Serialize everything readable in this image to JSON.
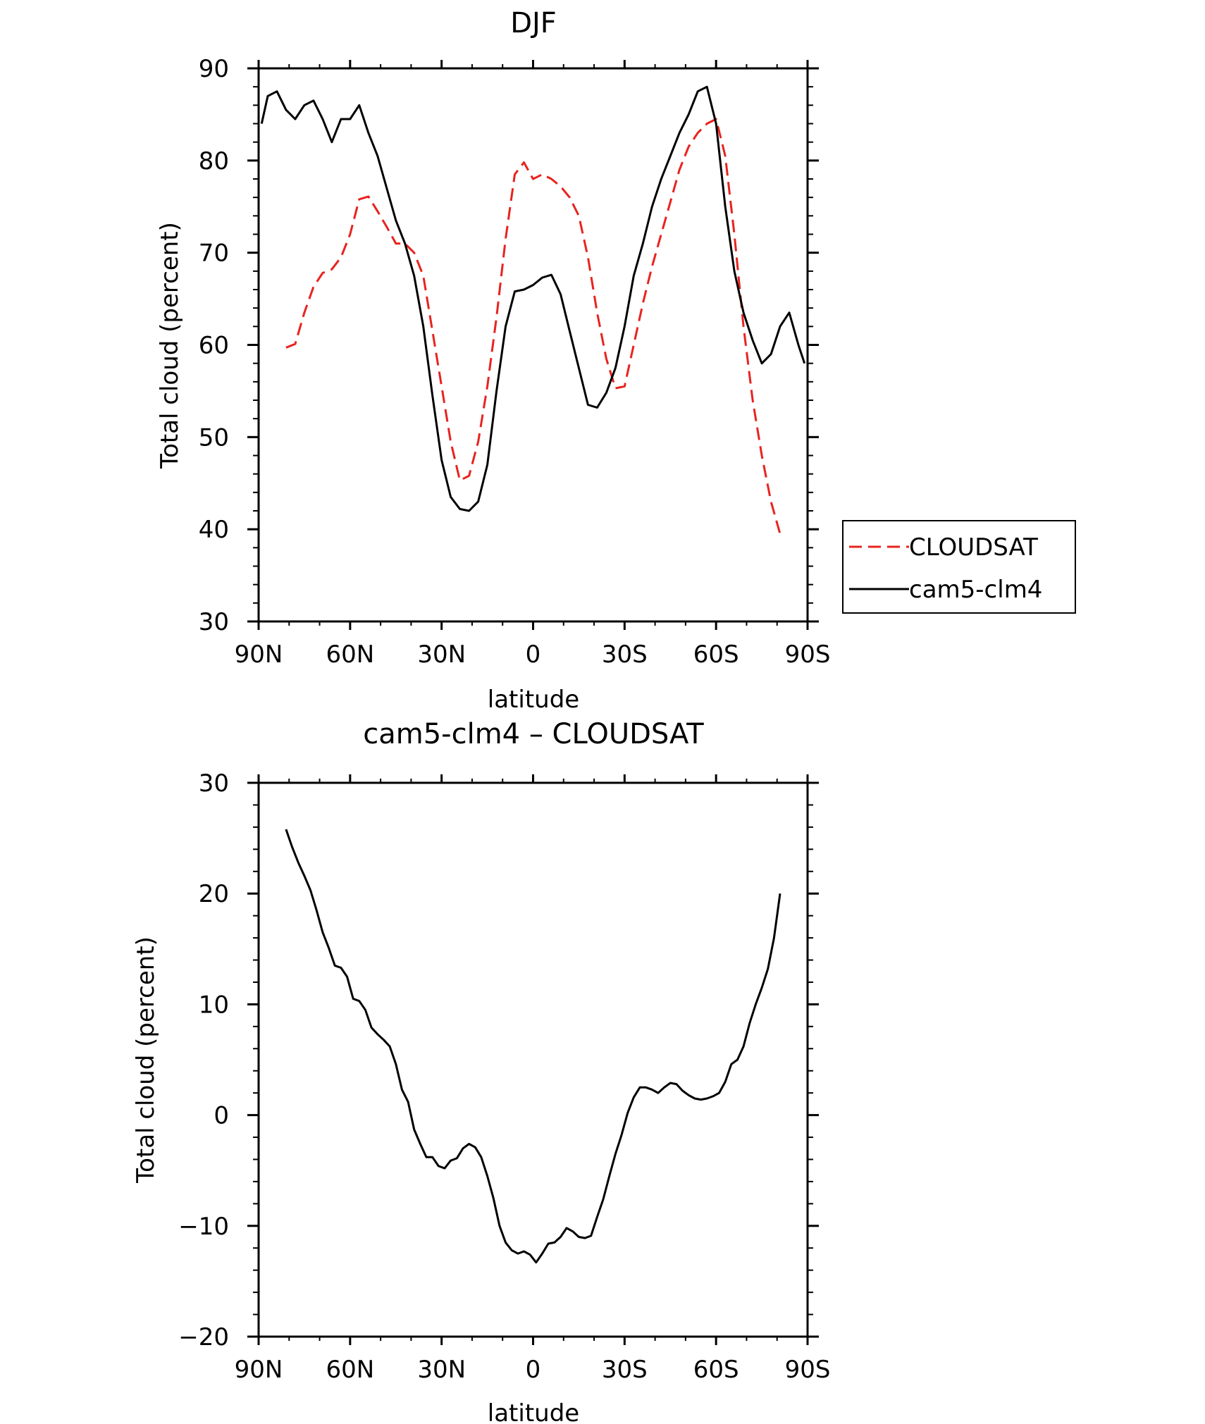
{
  "chart_data": [
    {
      "type": "line",
      "title": "DJF",
      "xlabel": "latitude",
      "ylabel": "Total cloud (percent)",
      "xlim": [
        90,
        -90
      ],
      "ylim": [
        30,
        90
      ],
      "x_ticks": [
        90,
        60,
        30,
        0,
        -30,
        -60,
        -90
      ],
      "x_tick_labels": [
        "90N",
        "60N",
        "30N",
        "0",
        "30S",
        "60S",
        "90S"
      ],
      "y_ticks": [
        30,
        40,
        50,
        60,
        70,
        80,
        90
      ],
      "y_tick_labels": [
        "30",
        "40",
        "50",
        "60",
        "70",
        "80",
        "90"
      ],
      "grid": false,
      "legend": "right",
      "series": [
        {
          "name": "CLOUDSAT",
          "color": "#e8231f",
          "dash": "dashed",
          "x": [
            81,
            78,
            75,
            72,
            69,
            66,
            63,
            60,
            57,
            54,
            51,
            48,
            45,
            42,
            39,
            36,
            33,
            30,
            27,
            24,
            21,
            18,
            15,
            12,
            9,
            6,
            3,
            0,
            -3,
            -6,
            -9,
            -12,
            -15,
            -18,
            -21,
            -24,
            -27,
            -30,
            -33,
            -36,
            -39,
            -42,
            -45,
            -48,
            -51,
            -54,
            -57,
            -60,
            -63,
            -66,
            -69,
            -72,
            -75,
            -78,
            -81
          ],
          "y": [
            59.7,
            60.1,
            63.5,
            66.3,
            67.8,
            68.2,
            69.5,
            72.0,
            75.8,
            76.1,
            74.5,
            72.8,
            71.0,
            71.0,
            70.0,
            67.5,
            61.5,
            55.5,
            49.5,
            45.3,
            45.8,
            49.5,
            55.5,
            63.0,
            71.5,
            78.5,
            79.8,
            78.0,
            78.5,
            78.0,
            77.2,
            76.0,
            74.0,
            69.5,
            63.5,
            58.5,
            55.3,
            55.5,
            60.0,
            64.5,
            68.5,
            72.0,
            75.5,
            79.0,
            81.5,
            83.0,
            84.0,
            84.5,
            80.5,
            72.0,
            62.0,
            54.0,
            48.0,
            43.0,
            39.5
          ]
        },
        {
          "name": "cam5-clm4",
          "color": "#000000",
          "dash": "solid",
          "x": [
            89,
            87,
            84,
            81,
            78,
            75,
            72,
            69,
            66,
            63,
            60,
            57,
            54,
            51,
            48,
            45,
            42,
            39,
            36,
            33,
            30,
            27,
            24,
            21,
            18,
            15,
            12,
            9,
            6,
            3,
            0,
            -3,
            -6,
            -9,
            -12,
            -15,
            -18,
            -21,
            -24,
            -27,
            -30,
            -33,
            -36,
            -39,
            -42,
            -45,
            -48,
            -51,
            -54,
            -57,
            -60,
            -63,
            -66,
            -69,
            -72,
            -75,
            -78,
            -81,
            -84,
            -87,
            -89
          ],
          "y": [
            84.0,
            87.0,
            87.5,
            85.5,
            84.5,
            86.0,
            86.5,
            84.5,
            82.0,
            84.5,
            84.5,
            86.0,
            83.0,
            80.5,
            77.0,
            73.5,
            71.0,
            67.5,
            62.0,
            54.5,
            47.5,
            43.5,
            42.2,
            42.0,
            43.0,
            47.0,
            55.0,
            62.0,
            65.8,
            66.0,
            66.5,
            67.3,
            67.6,
            65.5,
            61.5,
            57.5,
            53.5,
            53.2,
            54.8,
            57.5,
            62.0,
            67.5,
            71.0,
            75.0,
            78.0,
            80.5,
            83.0,
            85.0,
            87.5,
            88.0,
            84.0,
            75.0,
            68.0,
            63.5,
            60.5,
            58.0,
            59.0,
            62.0,
            63.5,
            60.0,
            58.0
          ]
        }
      ]
    },
    {
      "type": "line",
      "title": "cam5-clm4 – CLOUDSAT",
      "xlabel": "latitude",
      "ylabel": "Total cloud (percent)",
      "xlim": [
        90,
        -90
      ],
      "ylim": [
        -20,
        30
      ],
      "x_ticks": [
        90,
        60,
        30,
        0,
        -30,
        -60,
        -90
      ],
      "x_tick_labels": [
        "90N",
        "60N",
        "30N",
        "0",
        "30S",
        "60S",
        "90S"
      ],
      "y_ticks": [
        -20,
        -10,
        0,
        10,
        20,
        30
      ],
      "y_tick_labels": [
        "−20",
        "−10",
        "0",
        "10",
        "20",
        "30"
      ],
      "grid": false,
      "series": [
        {
          "color": "#000000",
          "dash": "solid",
          "x": [
            81,
            79,
            77,
            75,
            73,
            71,
            69,
            67,
            65,
            63,
            61,
            59,
            57,
            55,
            53,
            51,
            49,
            47,
            45,
            43,
            41,
            39,
            37,
            35,
            33,
            31,
            29,
            27,
            25,
            23,
            21,
            19,
            17,
            15,
            13,
            11,
            9,
            7,
            5,
            3,
            1,
            -1,
            -3,
            -5,
            -7,
            -9,
            -11,
            -13,
            -15,
            -17,
            -19,
            -21,
            -23,
            -25,
            -27,
            -29,
            -31,
            -33,
            -35,
            -37,
            -39,
            -41,
            -43,
            -45,
            -47,
            -49,
            -51,
            -53,
            -55,
            -57,
            -59,
            -61,
            -63,
            -65,
            -67,
            -69,
            -71,
            -73,
            -75,
            -77,
            -79,
            -81
          ],
          "y": [
            25.8,
            24.2,
            22.8,
            21.6,
            20.3,
            18.5,
            16.5,
            15.1,
            13.5,
            13.3,
            12.5,
            10.5,
            10.3,
            9.5,
            7.9,
            7.3,
            6.8,
            6.2,
            4.6,
            2.3,
            1.2,
            -1.3,
            -2.6,
            -3.8,
            -3.8,
            -4.6,
            -4.8,
            -4.1,
            -3.9,
            -3.0,
            -2.6,
            -2.9,
            -3.8,
            -5.5,
            -7.5,
            -10.0,
            -11.5,
            -12.2,
            -12.5,
            -12.3,
            -12.6,
            -13.3,
            -12.5,
            -11.6,
            -11.5,
            -11.0,
            -10.2,
            -10.5,
            -11.0,
            -11.1,
            -10.9,
            -9.2,
            -7.6,
            -5.5,
            -3.5,
            -1.8,
            0.2,
            1.6,
            2.5,
            2.5,
            2.3,
            2.0,
            2.5,
            2.9,
            2.8,
            2.2,
            1.8,
            1.5,
            1.4,
            1.5,
            1.7,
            2.0,
            3.0,
            4.6,
            5.0,
            6.2,
            8.3,
            10.0,
            11.5,
            13.2,
            16.0,
            20.0
          ]
        }
      ]
    }
  ]
}
